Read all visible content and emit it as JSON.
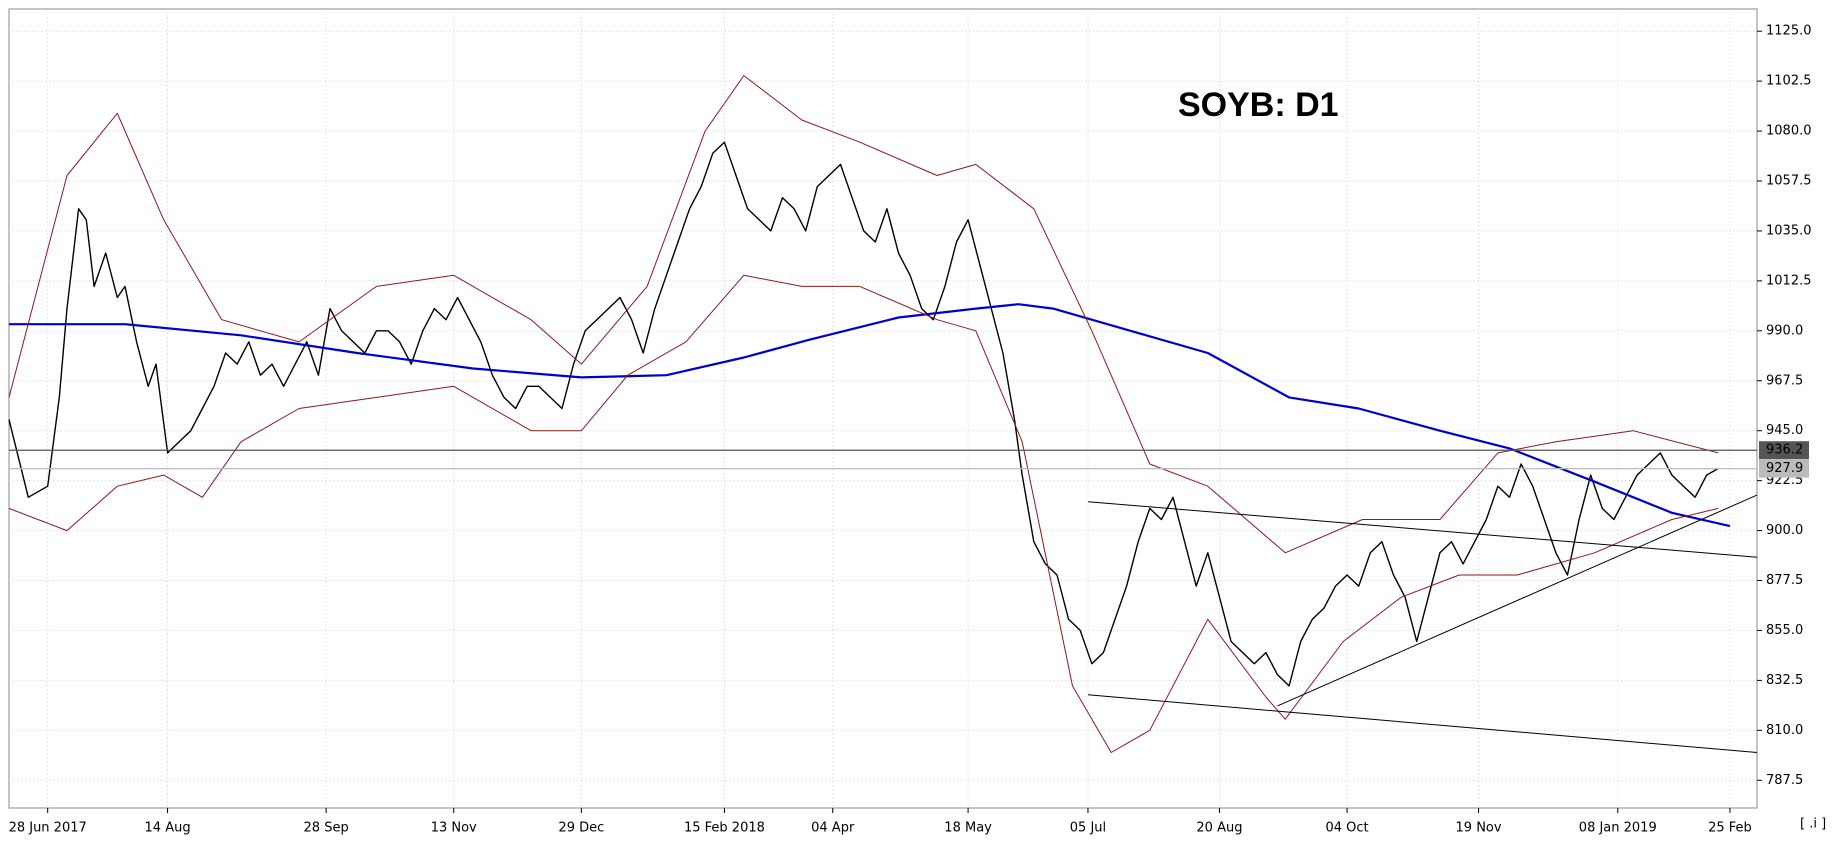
{
  "chart_data": {
    "type": "line",
    "title": "SOYB: D1",
    "corner_label": "[ .i ]",
    "xlim": [
      0,
      452
    ],
    "ylim": [
      775,
      1135
    ],
    "xticks": [
      {
        "value": 10,
        "label": "28 Jun 2017"
      },
      {
        "value": 41,
        "label": "14 Aug"
      },
      {
        "value": 82,
        "label": "28 Sep"
      },
      {
        "value": 115,
        "label": "13 Nov"
      },
      {
        "value": 148,
        "label": "29 Dec"
      },
      {
        "value": 185,
        "label": "15 Feb 2018"
      },
      {
        "value": 213,
        "label": "04 Apr"
      },
      {
        "value": 248,
        "label": "18 May"
      },
      {
        "value": 279,
        "label": "05 Jul"
      },
      {
        "value": 313,
        "label": "20 Aug"
      },
      {
        "value": 346,
        "label": "04 Oct"
      },
      {
        "value": 380,
        "label": "19 Nov"
      },
      {
        "value": 416,
        "label": "08 Jan 2019"
      },
      {
        "value": 445,
        "label": "25 Feb"
      }
    ],
    "yticks": [
      {
        "value": 1125,
        "label": "1125.0"
      },
      1102.5,
      {
        "value": 1080,
        "label": "1080.0"
      },
      1057.5,
      {
        "value": 1035,
        "label": "1035.0"
      },
      1012.5,
      {
        "value": 990,
        "label": "990.0"
      },
      967.5,
      {
        "value": 945,
        "label": "945.0"
      },
      922.5,
      {
        "value": 900,
        "label": "900.0"
      },
      877.5,
      {
        "value": 855,
        "label": "855.0"
      },
      832.5,
      {
        "value": 810,
        "label": "810.0"
      },
      787.5
    ],
    "grid": true,
    "levels": [
      {
        "value": 936.2,
        "color": "#555555"
      },
      {
        "value": 927.9,
        "color": "#bbbbbb"
      }
    ],
    "series": [
      {
        "color": "#000000",
        "width": 1.4,
        "x": [
          0,
          5,
          10,
          13,
          15,
          18,
          20,
          22,
          25,
          28,
          30,
          33,
          36,
          38,
          41,
          44,
          47,
          50,
          53,
          56,
          59,
          62,
          65,
          68,
          71,
          74,
          77,
          80,
          83,
          86,
          89,
          92,
          95,
          98,
          101,
          104,
          107,
          110,
          113,
          116,
          119,
          122,
          125,
          128,
          131,
          134,
          137,
          140,
          143,
          146,
          149,
          152,
          155,
          158,
          161,
          164,
          167,
          170,
          173,
          176,
          179,
          182,
          185,
          188,
          191,
          194,
          197,
          200,
          203,
          206,
          209,
          212,
          215,
          218,
          221,
          224,
          227,
          230,
          233,
          236,
          239,
          242,
          245,
          248,
          251,
          254,
          257,
          260,
          262,
          265,
          268,
          271,
          274,
          277,
          280,
          283,
          286,
          289,
          292,
          295,
          298,
          301,
          304,
          307,
          310,
          313,
          316,
          319,
          322,
          325,
          328,
          331,
          334,
          337,
          340,
          343,
          346,
          349,
          352,
          355,
          358,
          361,
          364,
          367,
          370,
          373,
          376,
          379,
          382,
          385,
          388,
          391,
          394,
          397,
          400,
          403,
          406,
          409,
          412,
          415,
          418,
          421,
          424,
          427,
          430,
          433,
          436,
          439,
          442
        ],
        "values": [
          950,
          915,
          920,
          960,
          1000,
          1045,
          1040,
          1010,
          1025,
          1005,
          1010,
          985,
          965,
          975,
          935,
          940,
          945,
          955,
          965,
          980,
          975,
          985,
          970,
          975,
          965,
          975,
          985,
          970,
          1000,
          990,
          985,
          980,
          990,
          990,
          985,
          975,
          990,
          1000,
          995,
          1005,
          995,
          985,
          970,
          960,
          955,
          965,
          965,
          960,
          955,
          975,
          990,
          995,
          1000,
          1005,
          995,
          980,
          1000,
          1015,
          1030,
          1045,
          1055,
          1070,
          1075,
          1060,
          1045,
          1040,
          1035,
          1050,
          1045,
          1035,
          1055,
          1060,
          1065,
          1050,
          1035,
          1030,
          1045,
          1025,
          1015,
          1000,
          995,
          1010,
          1030,
          1040,
          1020,
          1000,
          980,
          950,
          925,
          895,
          885,
          880,
          860,
          855,
          840,
          845,
          860,
          875,
          895,
          910,
          905,
          915,
          895,
          875,
          890,
          870,
          850,
          845,
          840,
          845,
          835,
          830,
          850,
          860,
          865,
          875,
          880,
          875,
          890,
          895,
          880,
          870,
          850,
          870,
          890,
          895,
          885,
          895,
          905,
          920,
          915,
          930,
          920,
          905,
          890,
          880,
          905,
          925,
          910,
          905,
          915,
          925,
          930,
          935,
          925,
          920,
          915,
          925,
          928
        ]
      },
      {
        "color": "#0000cc",
        "width": 2.2,
        "x": [
          0,
          30,
          60,
          90,
          120,
          148,
          170,
          190,
          207,
          230,
          250,
          261,
          270,
          290,
          310,
          331,
          349,
          370,
          388,
          410,
          430,
          445
        ],
        "values": [
          993,
          993,
          988,
          980,
          973,
          969,
          970,
          978,
          986,
          996,
          1000,
          1002,
          1000,
          990,
          980,
          960,
          955,
          945,
          937,
          922,
          908,
          902
        ]
      },
      {
        "color": "#8b1a1a",
        "width": 1,
        "x": [
          0,
          15,
          28,
          40,
          55,
          75,
          95,
          115,
          135,
          148,
          165,
          180,
          190,
          205,
          220,
          240,
          250,
          265,
          280,
          295,
          310,
          330,
          350,
          370,
          385,
          400,
          420,
          442
        ],
        "values": [
          960,
          1060,
          1088,
          1040,
          995,
          985,
          1010,
          1015,
          995,
          975,
          1010,
          1080,
          1105,
          1085,
          1075,
          1060,
          1065,
          1045,
          990,
          930,
          920,
          890,
          905,
          905,
          935,
          940,
          945,
          935
        ]
      },
      {
        "color": "#8b1a1a",
        "width": 1,
        "x": [
          0,
          15,
          28,
          40,
          50,
          60,
          75,
          95,
          115,
          135,
          148,
          160,
          175,
          190,
          205,
          220,
          240,
          250,
          262,
          275,
          285,
          295,
          310,
          325,
          330,
          345,
          360,
          375,
          390,
          410,
          430,
          442
        ],
        "values": [
          910,
          900,
          920,
          925,
          915,
          940,
          955,
          960,
          965,
          945,
          945,
          970,
          985,
          1015,
          1010,
          1010,
          995,
          990,
          940,
          830,
          800,
          810,
          860,
          825,
          815,
          850,
          870,
          880,
          880,
          890,
          905,
          910
        ]
      },
      {
        "color": "#000000",
        "width": 1,
        "x": [
          279,
          452
        ],
        "values": [
          913,
          888
        ]
      },
      {
        "color": "#000000",
        "width": 1,
        "x": [
          279,
          452
        ],
        "values": [
          826,
          800
        ]
      },
      {
        "color": "#000000",
        "width": 1,
        "x": [
          328,
          452
        ],
        "values": [
          821,
          916
        ]
      }
    ]
  }
}
